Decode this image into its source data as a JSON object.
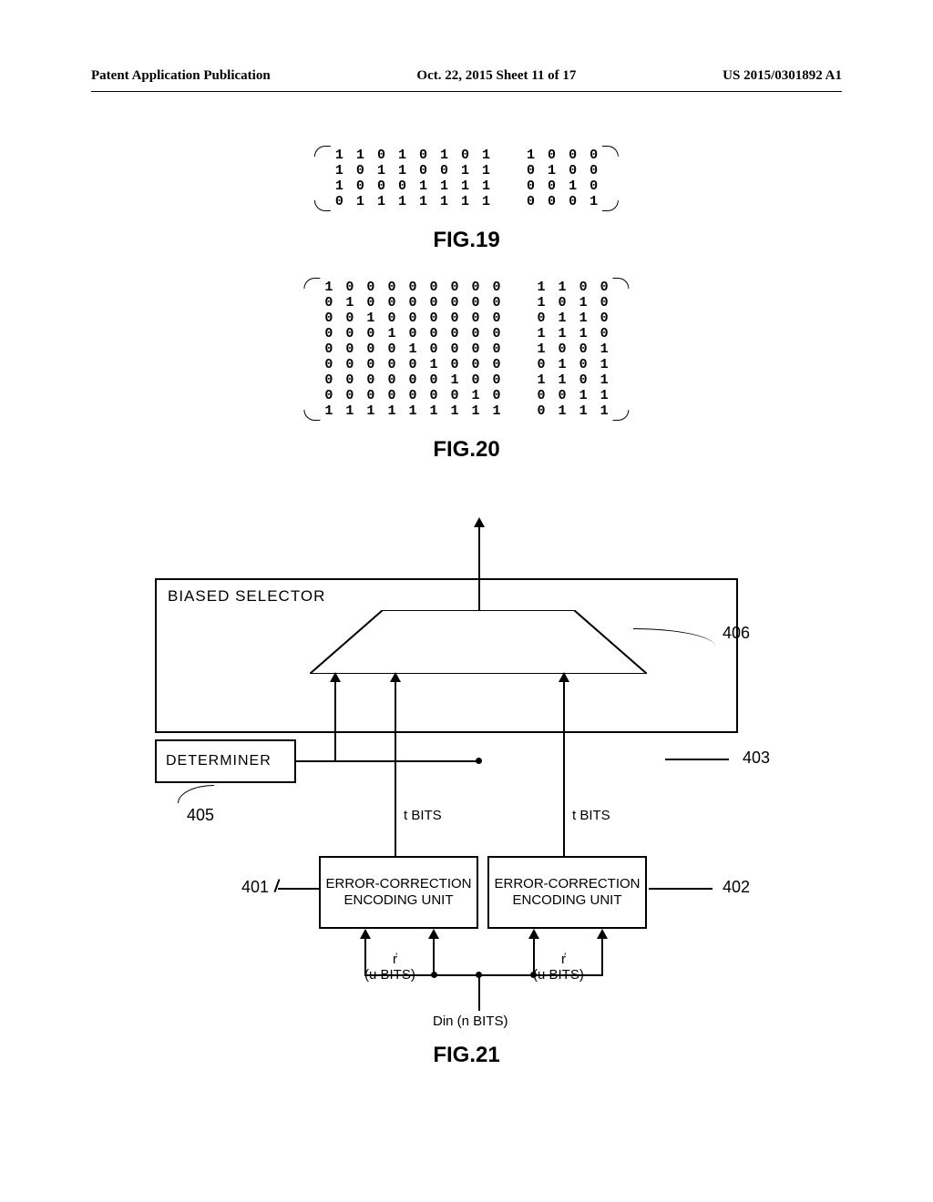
{
  "header": {
    "left": "Patent Application Publication",
    "center": "Oct. 22, 2015  Sheet 11 of 17",
    "right": "US 2015/0301892 A1"
  },
  "matrix19": {
    "rows": [
      [
        "1",
        "1",
        "0",
        "1",
        "0",
        "1",
        "0",
        "1",
        "1",
        "0",
        "0",
        "0"
      ],
      [
        "1",
        "0",
        "1",
        "1",
        "0",
        "0",
        "1",
        "1",
        "0",
        "1",
        "0",
        "0"
      ],
      [
        "1",
        "0",
        "0",
        "0",
        "1",
        "1",
        "1",
        "1",
        "0",
        "0",
        "1",
        "0"
      ],
      [
        "0",
        "1",
        "1",
        "1",
        "1",
        "1",
        "1",
        "1",
        "0",
        "0",
        "0",
        "1"
      ]
    ],
    "gap_after_col": 8
  },
  "matrix20": {
    "rows": [
      [
        "1",
        "0",
        "0",
        "0",
        "0",
        "0",
        "0",
        "0",
        "0",
        "1",
        "1",
        "0",
        "0"
      ],
      [
        "0",
        "1",
        "0",
        "0",
        "0",
        "0",
        "0",
        "0",
        "0",
        "1",
        "0",
        "1",
        "0"
      ],
      [
        "0",
        "0",
        "1",
        "0",
        "0",
        "0",
        "0",
        "0",
        "0",
        "0",
        "1",
        "1",
        "0"
      ],
      [
        "0",
        "0",
        "0",
        "1",
        "0",
        "0",
        "0",
        "0",
        "0",
        "1",
        "1",
        "1",
        "0"
      ],
      [
        "0",
        "0",
        "0",
        "0",
        "1",
        "0",
        "0",
        "0",
        "0",
        "1",
        "0",
        "0",
        "1"
      ],
      [
        "0",
        "0",
        "0",
        "0",
        "0",
        "1",
        "0",
        "0",
        "0",
        "0",
        "1",
        "0",
        "1"
      ],
      [
        "0",
        "0",
        "0",
        "0",
        "0",
        "0",
        "1",
        "0",
        "0",
        "1",
        "1",
        "0",
        "1"
      ],
      [
        "0",
        "0",
        "0",
        "0",
        "0",
        "0",
        "0",
        "1",
        "0",
        "0",
        "0",
        "1",
        "1"
      ],
      [
        "1",
        "1",
        "1",
        "1",
        "1",
        "1",
        "1",
        "1",
        "1",
        "0",
        "1",
        "1",
        "1"
      ]
    ],
    "gap_after_col": 9
  },
  "figLabels": {
    "fig19": "FIG.19",
    "fig20": "FIG.20",
    "fig21": "FIG.21"
  },
  "diagram": {
    "biasedSelector": "BIASED SELECTOR",
    "determiner": "DETERMINER",
    "encodingUnit": "ERROR-CORRECTION\nENCODING UNIT",
    "tBits": "t BITS",
    "r": "r",
    "uBits": "(u BITS)",
    "din": "Din (n BITS)",
    "refs": {
      "r401": "401",
      "r402": "402",
      "r403": "403",
      "r405": "405",
      "r406": "406"
    }
  }
}
